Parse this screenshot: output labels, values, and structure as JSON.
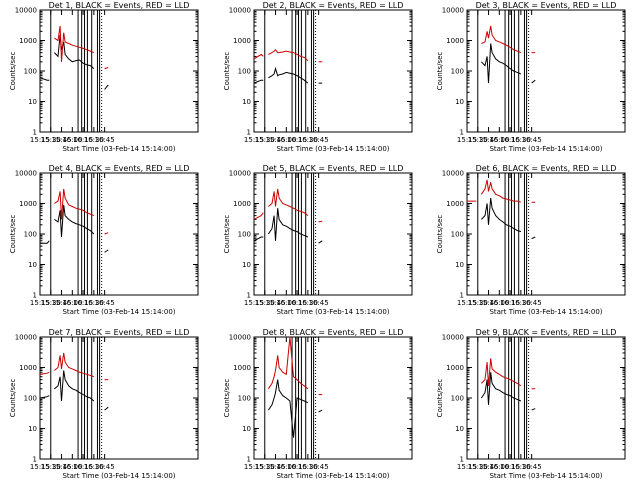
{
  "figure": {
    "background": "#ffffff",
    "axis_color": "#000000",
    "events_color": "#000000",
    "lld_color": "#cc0000"
  },
  "chart_data": [
    {
      "type": "line",
      "title": "Det 1, BLACK = Events, RED = LLD",
      "xlabel": "Start Time (03-Feb-14 15:14:00)",
      "ylabel": "Counts/sec",
      "yscale": "log",
      "ylim": [
        1,
        10000
      ],
      "xlim": [
        "15:15",
        "18:55"
      ],
      "xticks": [
        "15:15",
        "15:30",
        "15:45",
        "16:00",
        "16:15",
        "16:30",
        "16:45"
      ],
      "yticks": [
        "1",
        "10",
        "100",
        "1000",
        "10000"
      ],
      "vlines": [
        "15:30",
        "16:08",
        "16:13",
        "16:17",
        "16:21",
        "16:27",
        "16:35",
        "16:38"
      ],
      "x": [
        "15:15",
        "15:25",
        "15:28",
        "15:30",
        "15:35",
        "15:40",
        "15:43",
        "15:45",
        "15:48",
        "15:50",
        "15:55",
        "16:00",
        "16:05",
        "16:10",
        "16:15",
        "16:20",
        "16:25",
        "16:30",
        "16:35",
        "16:40",
        "16:45",
        "16:50"
      ],
      "series": [
        {
          "values": [
            60,
            50,
            50,
            null,
            400,
            300,
            1500,
            500,
            900,
            350,
            250,
            200,
            220,
            230,
            180,
            160,
            150,
            120,
            null,
            null,
            25,
            35
          ]
        },
        {
          "values": [
            null,
            null,
            null,
            null,
            1200,
            1000,
            3000,
            200,
            1800,
            900,
            800,
            700,
            650,
            600,
            550,
            500,
            450,
            400,
            null,
            null,
            120,
            130
          ]
        }
      ]
    },
    {
      "type": "line",
      "title": "Det 2, BLACK = Events, RED = LLD",
      "xlabel": "Start Time (03-Feb-14 15:14:00)",
      "ylabel": "Counts/sec",
      "yscale": "log",
      "ylim": [
        1,
        10000
      ],
      "xlim": [
        "15:15",
        "18:55"
      ],
      "xticks": [
        "15:15",
        "15:30",
        "15:45",
        "16:00",
        "16:15",
        "16:30",
        "16:45"
      ],
      "yticks": [
        "1",
        "10",
        "100",
        "1000",
        "10000"
      ],
      "vlines": [
        "15:30",
        "16:08",
        "16:13",
        "16:17",
        "16:21",
        "16:27",
        "16:35",
        "16:38"
      ],
      "x": [
        "15:15",
        "15:25",
        "15:28",
        "15:30",
        "15:35",
        "15:40",
        "15:43",
        "15:45",
        "15:48",
        "15:50",
        "15:55",
        "16:00",
        "16:05",
        "16:10",
        "16:15",
        "16:20",
        "16:25",
        "16:30",
        "16:35",
        "16:40",
        "16:45",
        "16:50"
      ],
      "series": [
        {
          "values": [
            40,
            50,
            50,
            null,
            60,
            70,
            80,
            120,
            70,
            75,
            80,
            90,
            85,
            80,
            70,
            60,
            50,
            40,
            null,
            null,
            40,
            40
          ]
        },
        {
          "values": [
            250,
            350,
            300,
            null,
            350,
            400,
            450,
            500,
            400,
            400,
            420,
            450,
            420,
            400,
            350,
            300,
            280,
            220,
            null,
            null,
            200,
            200
          ]
        }
      ]
    },
    {
      "type": "line",
      "title": "Det 3, BLACK = Events, RED = LLD",
      "xlabel": "Start Time (03-Feb-14 15:14:00)",
      "ylabel": "Counts/sec",
      "yscale": "log",
      "ylim": [
        1,
        10000
      ],
      "xlim": [
        "15:15",
        "18:55"
      ],
      "xticks": [
        "15:15",
        "15:30",
        "15:45",
        "16:00",
        "16:15",
        "16:30",
        "16:45"
      ],
      "yticks": [
        "1",
        "10",
        "100",
        "1000",
        "10000"
      ],
      "vlines": [
        "15:30",
        "16:08",
        "16:13",
        "16:17",
        "16:21",
        "16:27",
        "16:35",
        "16:38"
      ],
      "x": [
        "15:15",
        "15:25",
        "15:28",
        "15:30",
        "15:35",
        "15:40",
        "15:43",
        "15:45",
        "15:48",
        "15:50",
        "15:55",
        "16:00",
        "16:05",
        "16:10",
        "16:15",
        "16:20",
        "16:25",
        "16:30",
        "16:35",
        "16:40",
        "16:45",
        "16:50"
      ],
      "series": [
        {
          "values": [
            null,
            null,
            null,
            null,
            200,
            150,
            300,
            40,
            800,
            400,
            250,
            200,
            180,
            150,
            120,
            100,
            90,
            80,
            null,
            null,
            40,
            50
          ]
        },
        {
          "values": [
            null,
            null,
            null,
            null,
            800,
            900,
            2000,
            1200,
            3000,
            1500,
            1000,
            900,
            800,
            700,
            600,
            500,
            450,
            400,
            null,
            null,
            400,
            400
          ]
        }
      ]
    },
    {
      "type": "line",
      "title": "Det 4, BLACK = Events, RED = LLD",
      "xlabel": "Start Time (03-Feb-14 15:14:00)",
      "ylabel": "Counts/sec",
      "yscale": "log",
      "ylim": [
        1,
        10000
      ],
      "xlim": [
        "15:15",
        "18:55"
      ],
      "xticks": [
        "15:15",
        "15:30",
        "15:45",
        "16:00",
        "16:15",
        "16:30",
        "16:45"
      ],
      "yticks": [
        "1",
        "10",
        "100",
        "1000",
        "10000"
      ],
      "vlines": [
        "15:30",
        "16:08",
        "16:13",
        "16:17",
        "16:21",
        "16:27",
        "16:35",
        "16:38"
      ],
      "x": [
        "15:15",
        "15:25",
        "15:28",
        "15:30",
        "15:35",
        "15:40",
        "15:43",
        "15:45",
        "15:48",
        "15:50",
        "15:55",
        "16:00",
        "16:05",
        "16:10",
        "16:15",
        "16:20",
        "16:25",
        "16:30",
        "16:35",
        "16:40",
        "16:45",
        "16:50"
      ],
      "series": [
        {
          "values": [
            50,
            50,
            60,
            null,
            300,
            250,
            600,
            80,
            900,
            400,
            300,
            250,
            220,
            200,
            180,
            150,
            130,
            100,
            null,
            null,
            25,
            30
          ]
        },
        {
          "values": [
            null,
            null,
            null,
            null,
            1000,
            1200,
            2500,
            300,
            3000,
            1500,
            900,
            800,
            700,
            650,
            600,
            500,
            450,
            400,
            null,
            null,
            100,
            110
          ]
        }
      ]
    },
    {
      "type": "line",
      "title": "Det 5, BLACK = Events, RED = LLD",
      "xlabel": "Start Time (03-Feb-14 15:14:00)",
      "ylabel": "Counts/sec",
      "yscale": "log",
      "ylim": [
        1,
        10000
      ],
      "xlim": [
        "15:15",
        "18:55"
      ],
      "xticks": [
        "15:15",
        "15:30",
        "15:45",
        "16:00",
        "16:15",
        "16:30",
        "16:45"
      ],
      "yticks": [
        "1",
        "10",
        "100",
        "1000",
        "10000"
      ],
      "vlines": [
        "15:30",
        "16:08",
        "16:13",
        "16:17",
        "16:21",
        "16:27",
        "16:35",
        "16:38"
      ],
      "x": [
        "15:15",
        "15:25",
        "15:28",
        "15:30",
        "15:35",
        "15:40",
        "15:43",
        "15:45",
        "15:48",
        "15:50",
        "15:55",
        "16:00",
        "16:05",
        "16:10",
        "16:15",
        "16:20",
        "16:25",
        "16:30",
        "16:35",
        "16:40",
        "16:45",
        "16:50"
      ],
      "series": [
        {
          "values": [
            60,
            80,
            80,
            null,
            100,
            150,
            400,
            60,
            700,
            300,
            200,
            180,
            150,
            130,
            120,
            100,
            90,
            80,
            null,
            null,
            50,
            60
          ]
        },
        {
          "values": [
            300,
            400,
            500,
            null,
            800,
            1000,
            2500,
            800,
            3000,
            1500,
            1000,
            900,
            800,
            700,
            600,
            550,
            500,
            400,
            null,
            null,
            250,
            260
          ]
        }
      ]
    },
    {
      "type": "line",
      "title": "Det 6, BLACK = Events, RED = LLD",
      "xlabel": "Start Time (03-Feb-14 15:14:00)",
      "ylabel": "Counts/sec",
      "yscale": "log",
      "ylim": [
        1,
        10000
      ],
      "xlim": [
        "15:15",
        "18:55"
      ],
      "xticks": [
        "15:15",
        "15:30",
        "15:45",
        "16:00",
        "16:15",
        "16:30",
        "16:45"
      ],
      "yticks": [
        "1",
        "10",
        "100",
        "1000",
        "10000"
      ],
      "vlines": [
        "15:30",
        "16:08",
        "16:13",
        "16:17",
        "16:21",
        "16:27",
        "16:35",
        "16:38"
      ],
      "x": [
        "15:15",
        "15:25",
        "15:28",
        "15:30",
        "15:35",
        "15:40",
        "15:43",
        "15:45",
        "15:48",
        "15:50",
        "15:55",
        "16:00",
        "16:05",
        "16:10",
        "16:15",
        "16:20",
        "16:25",
        "16:30",
        "16:35",
        "16:40",
        "16:45",
        "16:50"
      ],
      "series": [
        {
          "values": [
            null,
            null,
            null,
            null,
            300,
            400,
            1000,
            200,
            1500,
            700,
            400,
            300,
            250,
            200,
            180,
            150,
            130,
            120,
            null,
            null,
            70,
            80
          ]
        },
        {
          "values": [
            1200,
            1200,
            1200,
            null,
            2000,
            3000,
            6000,
            2500,
            5000,
            3000,
            2000,
            1800,
            1500,
            1400,
            1300,
            1200,
            1200,
            1100,
            null,
            null,
            1100,
            1100
          ]
        }
      ]
    },
    {
      "type": "line",
      "title": "Det 7, BLACK = Events, RED = LLD",
      "xlabel": "Start Time (03-Feb-14 15:14:00)",
      "ylabel": "Counts/sec",
      "yscale": "log",
      "ylim": [
        1,
        10000
      ],
      "xlim": [
        "15:15",
        "18:55"
      ],
      "xticks": [
        "15:15",
        "15:30",
        "15:45",
        "16:00",
        "16:15",
        "16:30",
        "16:45"
      ],
      "yticks": [
        "1",
        "10",
        "100",
        "1000",
        "10000"
      ],
      "vlines": [
        "15:30",
        "16:08",
        "16:13",
        "16:17",
        "16:21",
        "16:27",
        "16:35",
        "16:38"
      ],
      "x": [
        "15:15",
        "15:25",
        "15:28",
        "15:30",
        "15:35",
        "15:40",
        "15:43",
        "15:45",
        "15:48",
        "15:50",
        "15:55",
        "16:00",
        "16:05",
        "16:10",
        "16:15",
        "16:20",
        "16:25",
        "16:30",
        "16:35",
        "16:40",
        "16:45",
        "16:50"
      ],
      "series": [
        {
          "values": [
            100,
            110,
            120,
            null,
            200,
            250,
            500,
            80,
            800,
            400,
            250,
            200,
            180,
            150,
            130,
            110,
            100,
            80,
            null,
            null,
            40,
            50
          ]
        },
        {
          "values": [
            600,
            650,
            700,
            null,
            800,
            1000,
            2500,
            900,
            3000,
            1500,
            1000,
            900,
            800,
            700,
            650,
            600,
            550,
            500,
            null,
            null,
            400,
            400
          ]
        }
      ]
    },
    {
      "type": "line",
      "title": "Det 8, BLACK = Events, RED = LLD",
      "xlabel": "Start Time (03-Feb-14 15:14:00)",
      "ylabel": "Counts/sec",
      "yscale": "log",
      "ylim": [
        1,
        10000
      ],
      "xlim": [
        "15:15",
        "18:55"
      ],
      "xticks": [
        "15:15",
        "15:30",
        "15:45",
        "16:00",
        "16:15",
        "16:30",
        "16:45"
      ],
      "yticks": [
        "1",
        "10",
        "100",
        "1000",
        "10000"
      ],
      "vlines": [
        "15:30",
        "16:08",
        "16:13",
        "16:17",
        "16:21",
        "16:27",
        "16:35",
        "16:38"
      ],
      "x": [
        "15:15",
        "15:25",
        "15:28",
        "15:30",
        "15:35",
        "15:40",
        "15:43",
        "15:45",
        "15:48",
        "15:50",
        "15:55",
        "16:00",
        "16:05",
        "16:10",
        "16:15",
        "16:20",
        "16:25",
        "16:30",
        "16:35",
        "16:40",
        "16:45",
        "16:50"
      ],
      "series": [
        {
          "values": [
            null,
            null,
            null,
            null,
            40,
            60,
            100,
            150,
            400,
            180,
            120,
            100,
            80,
            5,
            100,
            90,
            80,
            70,
            null,
            null,
            35,
            40
          ]
        },
        {
          "values": [
            null,
            null,
            null,
            null,
            200,
            300,
            500,
            800,
            2500,
            1000,
            700,
            600,
            10000,
            500,
            400,
            300,
            250,
            200,
            null,
            null,
            130,
            130
          ]
        }
      ]
    },
    {
      "type": "line",
      "title": "Det 9, BLACK = Events, RED = LLD",
      "xlabel": "Start Time (03-Feb-14 15:14:00)",
      "ylabel": "Counts/sec",
      "yscale": "log",
      "ylim": [
        1,
        10000
      ],
      "xlim": [
        "15:15",
        "18:55"
      ],
      "xticks": [
        "15:15",
        "15:30",
        "15:45",
        "16:00",
        "16:15",
        "16:30",
        "16:45"
      ],
      "yticks": [
        "1",
        "10",
        "100",
        "1000",
        "10000"
      ],
      "vlines": [
        "15:30",
        "16:08",
        "16:13",
        "16:17",
        "16:21",
        "16:27",
        "16:35",
        "16:38"
      ],
      "x": [
        "15:15",
        "15:25",
        "15:28",
        "15:30",
        "15:35",
        "15:40",
        "15:43",
        "15:45",
        "15:48",
        "15:50",
        "15:55",
        "16:00",
        "16:05",
        "16:10",
        "16:15",
        "16:20",
        "16:25",
        "16:30",
        "16:35",
        "16:40",
        "16:45",
        "16:50"
      ],
      "series": [
        {
          "values": [
            null,
            null,
            null,
            null,
            100,
            150,
            400,
            60,
            700,
            300,
            200,
            180,
            150,
            130,
            120,
            100,
            90,
            80,
            null,
            null,
            40,
            45
          ]
        },
        {
          "values": [
            null,
            null,
            null,
            null,
            300,
            400,
            1500,
            250,
            2000,
            900,
            700,
            600,
            500,
            450,
            400,
            350,
            300,
            250,
            null,
            null,
            200,
            200
          ]
        }
      ]
    }
  ]
}
